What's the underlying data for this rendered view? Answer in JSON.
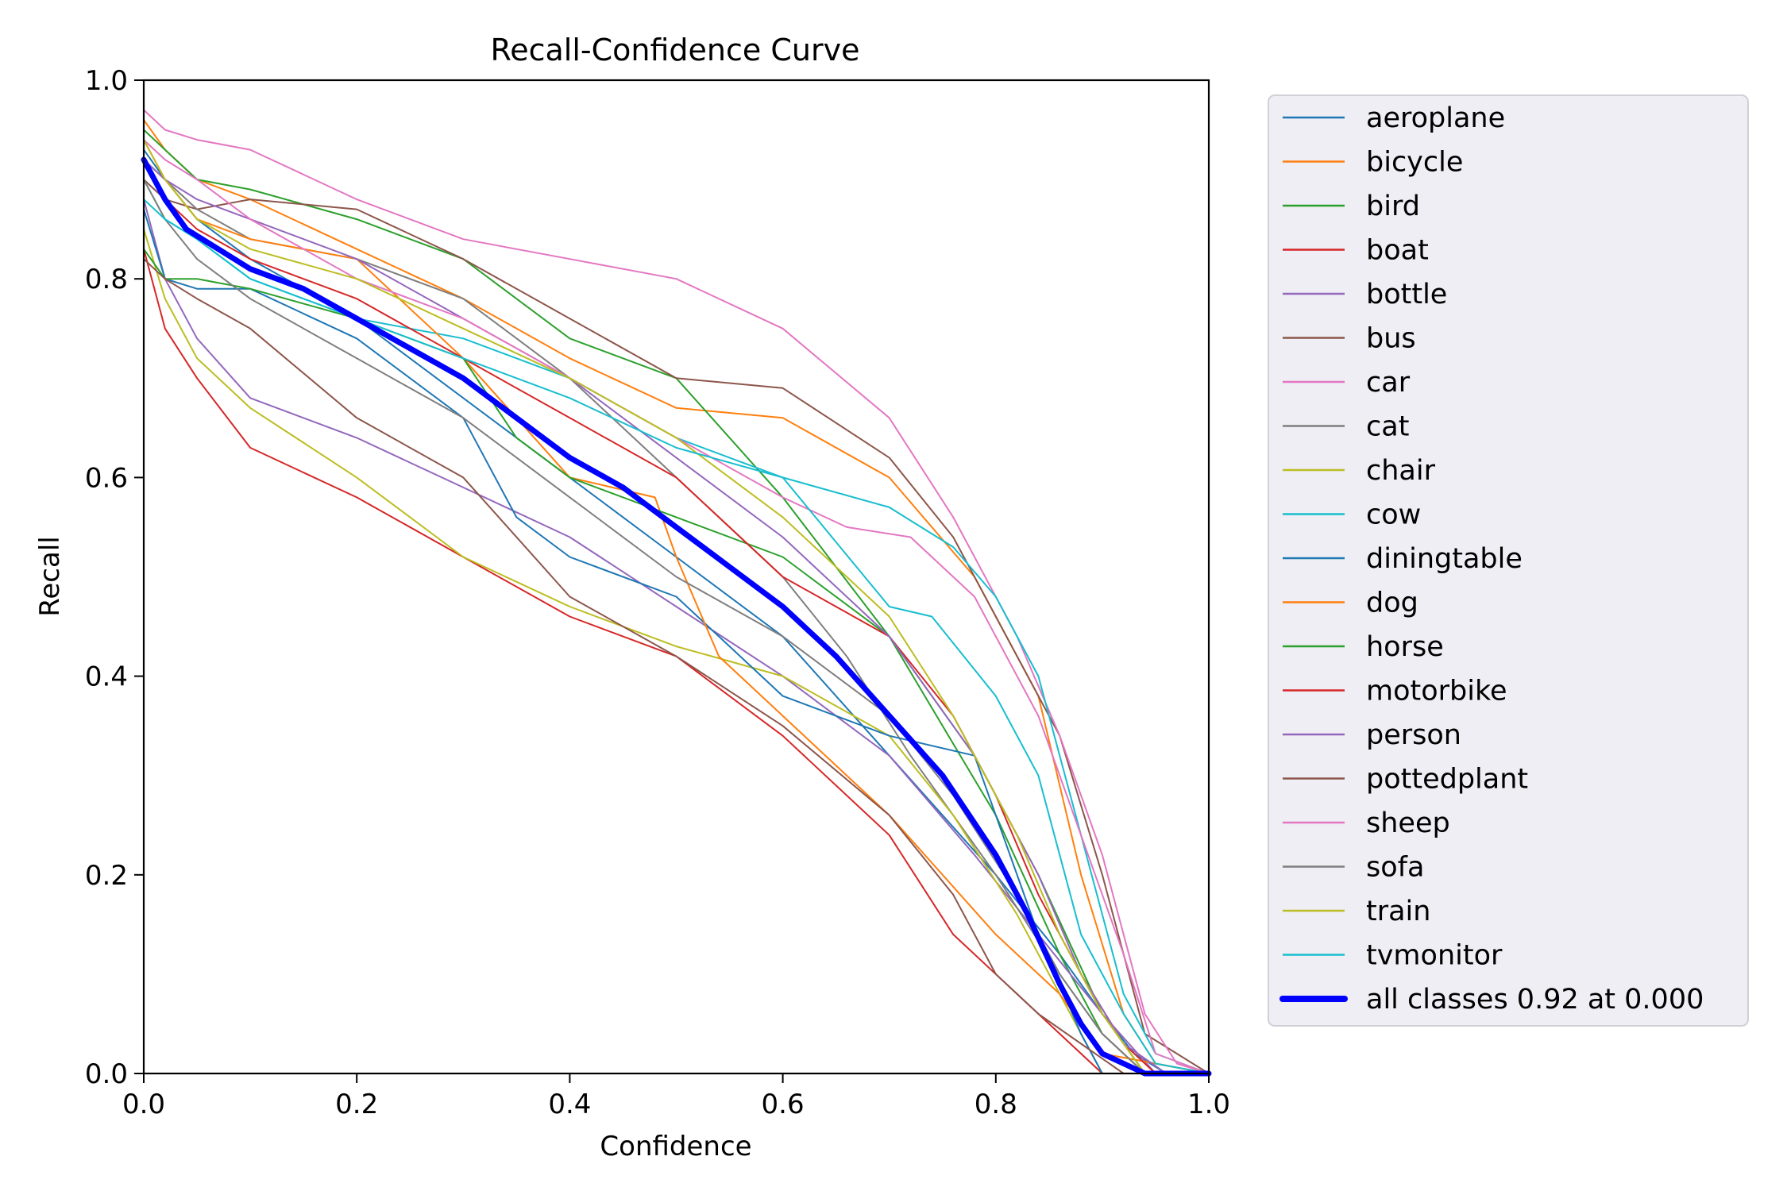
{
  "chart_data": {
    "type": "line",
    "title": "Recall-Confidence Curve",
    "xlabel": "Confidence",
    "ylabel": "Recall",
    "xlim": [
      0.0,
      1.0
    ],
    "ylim": [
      0.0,
      1.0
    ],
    "x_ticks": [
      "0.0",
      "0.2",
      "0.4",
      "0.6",
      "0.8",
      "1.0"
    ],
    "y_ticks": [
      "0.0",
      "0.2",
      "0.4",
      "0.6",
      "0.8",
      "1.0"
    ],
    "grid": false,
    "legend_position": "outside-right",
    "series": [
      {
        "name": "aeroplane",
        "color": "#1f77b4",
        "width": 2,
        "x": [
          0,
          0.02,
          0.05,
          0.1,
          0.2,
          0.3,
          0.4,
          0.5,
          0.6,
          0.7,
          0.8,
          0.86,
          0.9,
          0.93,
          0.96,
          1.0
        ],
        "y": [
          0.93,
          0.9,
          0.86,
          0.82,
          0.76,
          0.68,
          0.6,
          0.52,
          0.44,
          0.32,
          0.2,
          0.12,
          0.06,
          0.02,
          0.0,
          0.0
        ]
      },
      {
        "name": "bicycle",
        "color": "#ff7f0e",
        "width": 2,
        "x": [
          0,
          0.02,
          0.05,
          0.1,
          0.2,
          0.3,
          0.4,
          0.5,
          0.6,
          0.7,
          0.78,
          0.84,
          0.88,
          0.92,
          0.95,
          1.0
        ],
        "y": [
          0.96,
          0.93,
          0.9,
          0.88,
          0.83,
          0.78,
          0.72,
          0.67,
          0.66,
          0.6,
          0.5,
          0.38,
          0.2,
          0.06,
          0.01,
          0.0
        ]
      },
      {
        "name": "bird",
        "color": "#2ca02c",
        "width": 2,
        "x": [
          0,
          0.02,
          0.05,
          0.1,
          0.2,
          0.3,
          0.4,
          0.5,
          0.6,
          0.7,
          0.8,
          0.86,
          0.9,
          0.94,
          1.0
        ],
        "y": [
          0.95,
          0.93,
          0.9,
          0.89,
          0.86,
          0.82,
          0.74,
          0.7,
          0.58,
          0.44,
          0.26,
          0.12,
          0.04,
          0.0,
          0.0
        ]
      },
      {
        "name": "boat",
        "color": "#d62728",
        "width": 2,
        "x": [
          0,
          0.02,
          0.05,
          0.1,
          0.2,
          0.3,
          0.4,
          0.5,
          0.6,
          0.7,
          0.76,
          0.82,
          0.86,
          0.9,
          1.0
        ],
        "y": [
          0.83,
          0.75,
          0.7,
          0.63,
          0.58,
          0.52,
          0.46,
          0.42,
          0.34,
          0.24,
          0.14,
          0.08,
          0.04,
          0.0,
          0.0
        ]
      },
      {
        "name": "bottle",
        "color": "#9467bd",
        "width": 2,
        "x": [
          0,
          0.02,
          0.05,
          0.1,
          0.2,
          0.3,
          0.4,
          0.5,
          0.6,
          0.7,
          0.78,
          0.84,
          0.9,
          0.95,
          1.0
        ],
        "y": [
          0.88,
          0.8,
          0.74,
          0.68,
          0.64,
          0.59,
          0.54,
          0.47,
          0.4,
          0.32,
          0.22,
          0.14,
          0.06,
          0.0,
          0.0
        ]
      },
      {
        "name": "bus",
        "color": "#8c564b",
        "width": 2,
        "x": [
          0,
          0.02,
          0.05,
          0.1,
          0.2,
          0.3,
          0.4,
          0.5,
          0.6,
          0.7,
          0.76,
          0.8,
          0.86,
          0.9,
          0.94,
          1.0
        ],
        "y": [
          0.9,
          0.88,
          0.87,
          0.88,
          0.87,
          0.82,
          0.76,
          0.7,
          0.69,
          0.62,
          0.54,
          0.46,
          0.34,
          0.2,
          0.04,
          0.0
        ]
      },
      {
        "name": "car",
        "color": "#e377c2",
        "width": 2,
        "x": [
          0,
          0.02,
          0.05,
          0.1,
          0.2,
          0.3,
          0.4,
          0.5,
          0.6,
          0.7,
          0.76,
          0.82,
          0.86,
          0.9,
          0.94,
          0.97,
          1.0
        ],
        "y": [
          0.97,
          0.95,
          0.94,
          0.93,
          0.88,
          0.84,
          0.82,
          0.8,
          0.75,
          0.66,
          0.56,
          0.44,
          0.34,
          0.22,
          0.06,
          0.01,
          0.0
        ]
      },
      {
        "name": "cat",
        "color": "#7f7f7f",
        "width": 2,
        "x": [
          0,
          0.02,
          0.05,
          0.1,
          0.2,
          0.3,
          0.4,
          0.5,
          0.6,
          0.66,
          0.72,
          0.8,
          0.86,
          0.9,
          0.94,
          1.0
        ],
        "y": [
          0.92,
          0.9,
          0.87,
          0.84,
          0.82,
          0.78,
          0.7,
          0.6,
          0.5,
          0.42,
          0.32,
          0.2,
          0.1,
          0.04,
          0.0,
          0.0
        ]
      },
      {
        "name": "chair",
        "color": "#bcbd22",
        "width": 2,
        "x": [
          0,
          0.02,
          0.05,
          0.1,
          0.2,
          0.3,
          0.4,
          0.5,
          0.6,
          0.7,
          0.76,
          0.82,
          0.86,
          0.9,
          1.0
        ],
        "y": [
          0.85,
          0.78,
          0.72,
          0.67,
          0.6,
          0.52,
          0.47,
          0.43,
          0.4,
          0.34,
          0.26,
          0.16,
          0.08,
          0.0,
          0.0
        ]
      },
      {
        "name": "cow",
        "color": "#17becf",
        "width": 2,
        "x": [
          0,
          0.02,
          0.05,
          0.1,
          0.2,
          0.3,
          0.4,
          0.5,
          0.6,
          0.7,
          0.76,
          0.8,
          0.84,
          0.88,
          0.92,
          0.95,
          1.0
        ],
        "y": [
          0.9,
          0.86,
          0.84,
          0.8,
          0.76,
          0.74,
          0.7,
          0.64,
          0.6,
          0.57,
          0.53,
          0.48,
          0.4,
          0.24,
          0.08,
          0.02,
          0.0
        ]
      },
      {
        "name": "diningtable",
        "color": "#1f77b4",
        "width": 2,
        "x": [
          0,
          0.02,
          0.05,
          0.1,
          0.2,
          0.3,
          0.35,
          0.4,
          0.5,
          0.6,
          0.7,
          0.78,
          0.84,
          0.88,
          0.9,
          1.0
        ],
        "y": [
          0.87,
          0.8,
          0.79,
          0.79,
          0.74,
          0.66,
          0.56,
          0.52,
          0.48,
          0.38,
          0.34,
          0.32,
          0.14,
          0.04,
          0.0,
          0.0
        ]
      },
      {
        "name": "dog",
        "color": "#ff7f0e",
        "width": 2,
        "x": [
          0,
          0.02,
          0.05,
          0.1,
          0.2,
          0.3,
          0.4,
          0.48,
          0.5,
          0.54,
          0.6,
          0.7,
          0.8,
          0.86,
          0.9,
          1.0
        ],
        "y": [
          0.94,
          0.9,
          0.86,
          0.84,
          0.82,
          0.72,
          0.6,
          0.58,
          0.52,
          0.42,
          0.36,
          0.26,
          0.14,
          0.08,
          0.02,
          0.0
        ]
      },
      {
        "name": "horse",
        "color": "#2ca02c",
        "width": 2,
        "x": [
          0,
          0.02,
          0.05,
          0.1,
          0.2,
          0.3,
          0.35,
          0.4,
          0.5,
          0.6,
          0.7,
          0.78,
          0.84,
          0.9,
          0.94,
          1.0
        ],
        "y": [
          0.83,
          0.8,
          0.8,
          0.79,
          0.76,
          0.72,
          0.64,
          0.6,
          0.56,
          0.52,
          0.44,
          0.32,
          0.2,
          0.06,
          0.0,
          0.0
        ]
      },
      {
        "name": "motorbike",
        "color": "#d62728",
        "width": 2,
        "x": [
          0,
          0.02,
          0.05,
          0.1,
          0.2,
          0.3,
          0.4,
          0.5,
          0.6,
          0.7,
          0.76,
          0.8,
          0.84,
          0.88,
          0.92,
          0.95,
          1.0
        ],
        "y": [
          0.92,
          0.88,
          0.85,
          0.82,
          0.78,
          0.72,
          0.66,
          0.6,
          0.5,
          0.44,
          0.36,
          0.28,
          0.18,
          0.1,
          0.03,
          0.0,
          0.0
        ]
      },
      {
        "name": "person",
        "color": "#9467bd",
        "width": 2,
        "x": [
          0,
          0.02,
          0.05,
          0.1,
          0.2,
          0.3,
          0.4,
          0.5,
          0.6,
          0.7,
          0.78,
          0.84,
          0.88,
          0.92,
          0.96,
          1.0
        ],
        "y": [
          0.92,
          0.9,
          0.88,
          0.86,
          0.82,
          0.76,
          0.7,
          0.62,
          0.54,
          0.44,
          0.32,
          0.2,
          0.1,
          0.03,
          0.0,
          0.0
        ]
      },
      {
        "name": "pottedplant",
        "color": "#8c564b",
        "width": 2,
        "x": [
          0,
          0.02,
          0.05,
          0.1,
          0.2,
          0.3,
          0.4,
          0.5,
          0.6,
          0.7,
          0.76,
          0.8,
          0.84,
          0.88,
          0.92,
          1.0
        ],
        "y": [
          0.82,
          0.8,
          0.78,
          0.75,
          0.66,
          0.6,
          0.48,
          0.42,
          0.35,
          0.26,
          0.18,
          0.1,
          0.06,
          0.03,
          0.0,
          0.0
        ]
      },
      {
        "name": "sheep",
        "color": "#e377c2",
        "width": 2,
        "x": [
          0,
          0.02,
          0.05,
          0.1,
          0.2,
          0.3,
          0.4,
          0.5,
          0.6,
          0.66,
          0.72,
          0.78,
          0.84,
          0.88,
          0.92,
          0.95,
          1.0
        ],
        "y": [
          0.94,
          0.92,
          0.9,
          0.86,
          0.8,
          0.76,
          0.7,
          0.64,
          0.58,
          0.55,
          0.54,
          0.48,
          0.36,
          0.24,
          0.12,
          0.02,
          0.0
        ]
      },
      {
        "name": "sofa",
        "color": "#7f7f7f",
        "width": 2,
        "x": [
          0,
          0.02,
          0.05,
          0.1,
          0.2,
          0.3,
          0.4,
          0.5,
          0.6,
          0.7,
          0.76,
          0.82,
          0.86,
          0.9,
          0.94,
          1.0
        ],
        "y": [
          0.9,
          0.86,
          0.82,
          0.78,
          0.72,
          0.66,
          0.58,
          0.5,
          0.44,
          0.36,
          0.28,
          0.18,
          0.1,
          0.04,
          0.0,
          0.0
        ]
      },
      {
        "name": "train",
        "color": "#bcbd22",
        "width": 2,
        "x": [
          0,
          0.02,
          0.05,
          0.1,
          0.2,
          0.3,
          0.4,
          0.5,
          0.6,
          0.7,
          0.76,
          0.82,
          0.86,
          0.9,
          0.94,
          1.0
        ],
        "y": [
          0.94,
          0.9,
          0.86,
          0.83,
          0.8,
          0.75,
          0.7,
          0.64,
          0.56,
          0.46,
          0.36,
          0.24,
          0.14,
          0.06,
          0.0,
          0.0
        ]
      },
      {
        "name": "tvmonitor",
        "color": "#17becf",
        "width": 2,
        "x": [
          0,
          0.02,
          0.05,
          0.1,
          0.2,
          0.3,
          0.4,
          0.5,
          0.6,
          0.7,
          0.74,
          0.8,
          0.84,
          0.88,
          0.92,
          0.95,
          1.0
        ],
        "y": [
          0.88,
          0.86,
          0.84,
          0.8,
          0.76,
          0.72,
          0.68,
          0.63,
          0.6,
          0.47,
          0.46,
          0.38,
          0.3,
          0.14,
          0.06,
          0.01,
          0.0
        ]
      },
      {
        "name": "all classes 0.92 at 0.000",
        "color": "#0000ff",
        "width": 7,
        "x": [
          0,
          0.02,
          0.04,
          0.07,
          0.1,
          0.15,
          0.2,
          0.25,
          0.3,
          0.35,
          0.4,
          0.45,
          0.5,
          0.55,
          0.6,
          0.65,
          0.7,
          0.75,
          0.8,
          0.83,
          0.86,
          0.88,
          0.9,
          0.92,
          0.94,
          0.96,
          1.0
        ],
        "y": [
          0.92,
          0.88,
          0.85,
          0.83,
          0.81,
          0.79,
          0.76,
          0.73,
          0.7,
          0.66,
          0.62,
          0.59,
          0.55,
          0.51,
          0.47,
          0.42,
          0.36,
          0.3,
          0.22,
          0.16,
          0.09,
          0.05,
          0.02,
          0.01,
          0.0,
          0.0,
          0.0
        ]
      }
    ]
  }
}
